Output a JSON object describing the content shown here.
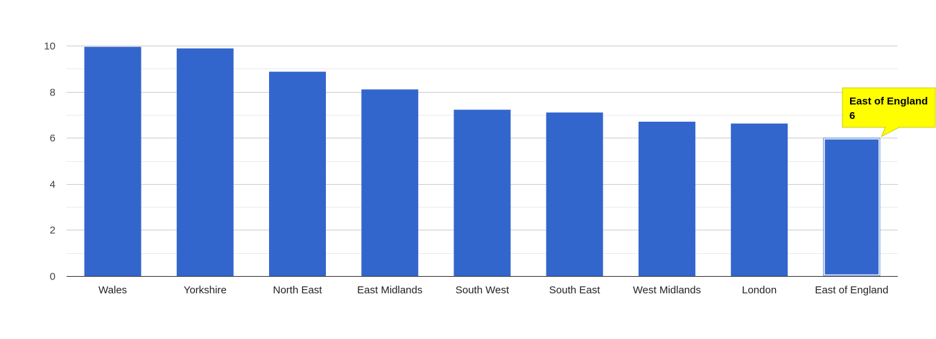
{
  "chart_data": {
    "type": "bar",
    "categories": [
      "Wales",
      "Yorkshire",
      "North East",
      "East Midlands",
      "South West",
      "South East",
      "West Midlands",
      "London",
      "East of England"
    ],
    "values": [
      9.95,
      9.88,
      8.87,
      8.1,
      7.22,
      7.1,
      6.7,
      6.62,
      6
    ],
    "title": "",
    "xlabel": "",
    "ylabel": "",
    "ylim": [
      0,
      10
    ],
    "yticks": [
      0,
      2,
      4,
      6,
      8,
      10
    ],
    "grid": true,
    "legend": "none",
    "bar_color": "#3366cc",
    "highlighted_index": 8,
    "tooltip": {
      "label": "East of England",
      "value": "6",
      "background": "#ffff00"
    }
  }
}
